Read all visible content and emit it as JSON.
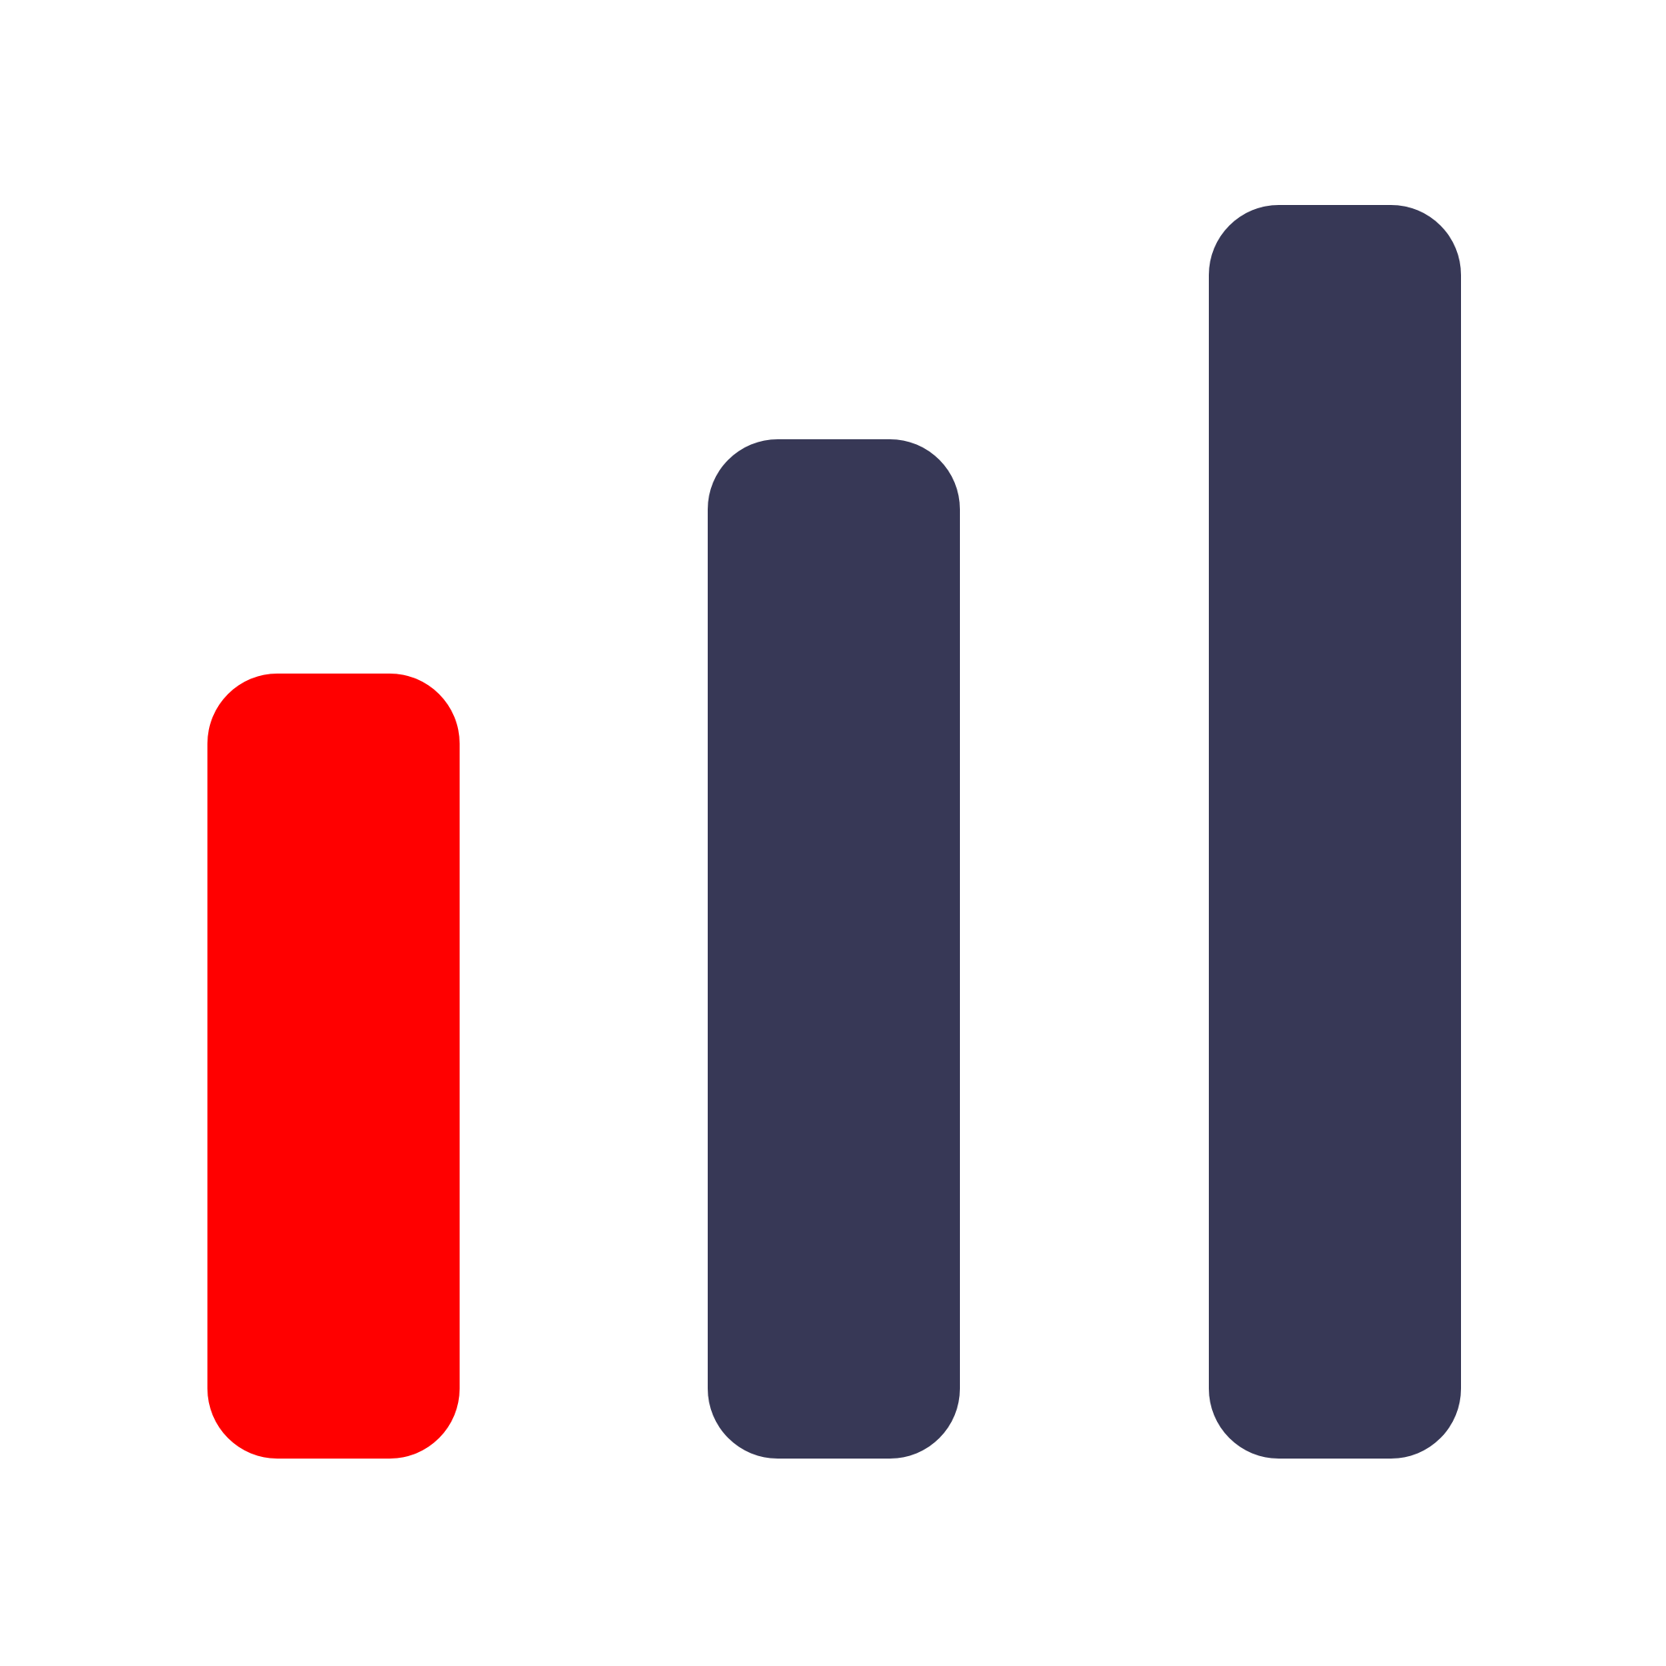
{
  "icon": {
    "name": "signal-strength-icon",
    "level": 1,
    "max_level": 3,
    "colors": {
      "active": "#ff0000",
      "inactive": "#373856",
      "background": "#ffffff"
    }
  }
}
